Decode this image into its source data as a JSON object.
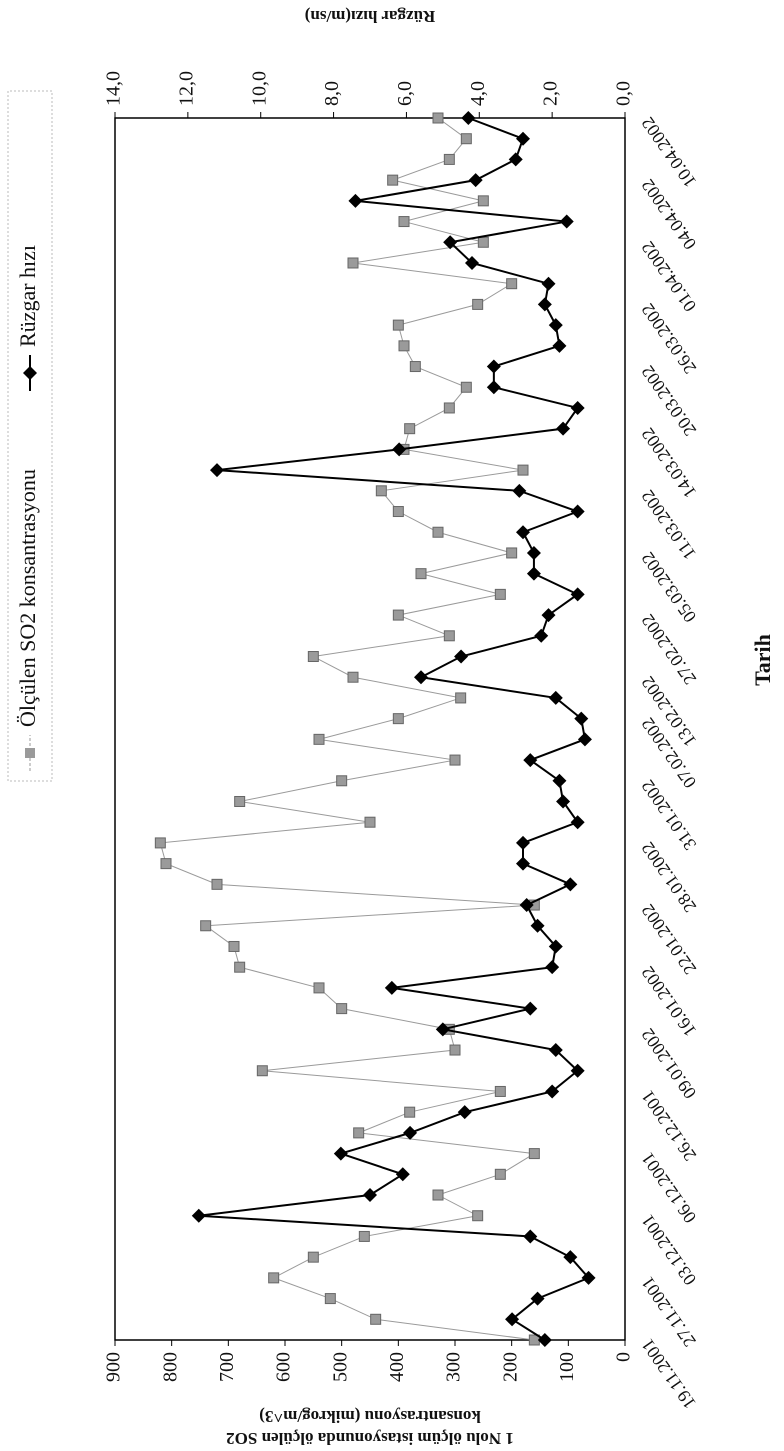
{
  "chart_data": {
    "type": "line",
    "xlabel": "Tarih",
    "ylabel_lines": [
      "1 Nolu ölçüm istasyonunda ölçülen SO2",
      "konsantrasyonu (mikrog/m^3)"
    ],
    "y2label": "Rüzgar hızı(m/sn)",
    "categories": [
      "19.11.2001",
      null,
      null,
      "27.11.2001",
      null,
      null,
      "03.12.2001",
      null,
      null,
      "06.12.2001",
      null,
      null,
      "26.12.2001",
      null,
      null,
      "09.01.2002",
      null,
      null,
      "16.01.2002",
      null,
      null,
      "22.01.2002",
      null,
      null,
      "28.01.2002",
      null,
      null,
      "31.01.2002",
      null,
      null,
      "07.02.2002",
      null,
      "13.02.2002",
      null,
      null,
      "27.02.2002",
      null,
      null,
      "05.03.2002",
      null,
      null,
      "11.03.2002",
      null,
      null,
      "14.03.2002",
      null,
      null,
      "20.03.2002",
      null,
      null,
      "26.03.2002",
      null,
      null,
      "01.04.2002",
      null,
      null,
      "04.04.2002",
      null,
      null,
      "10.04.2002"
    ],
    "series": [
      {
        "name": "Ölçülen SO2 konsantrasyonu",
        "color": "#9a9a9a",
        "axis": "y",
        "values": [
          160,
          440,
          520,
          620,
          550,
          460,
          260,
          330,
          220,
          160,
          470,
          380,
          220,
          640,
          300,
          310,
          500,
          540,
          680,
          690,
          740,
          160,
          720,
          810,
          820,
          450,
          680,
          500,
          300,
          540,
          400,
          290,
          480,
          550,
          310,
          400,
          220,
          360,
          200,
          330,
          400,
          430,
          180,
          390,
          380,
          310,
          280,
          370,
          390,
          400,
          260,
          200,
          480,
          250,
          390,
          250,
          410,
          310,
          280,
          330
        ]
      },
      {
        "name": "Rüzgar hızı",
        "color": "#000000",
        "axis": "y2",
        "values": [
          2.2,
          3.1,
          2.4,
          1.0,
          1.5,
          2.6,
          11.7,
          7.0,
          6.1,
          7.8,
          5.9,
          4.4,
          2.0,
          1.3,
          1.9,
          5.0,
          2.6,
          6.4,
          2.0,
          1.9,
          2.4,
          2.7,
          1.5,
          2.8,
          2.8,
          1.3,
          1.7,
          1.8,
          2.6,
          1.1,
          1.2,
          1.9,
          5.6,
          4.5,
          2.3,
          2.1,
          1.3,
          2.5,
          2.5,
          2.8,
          1.3,
          2.9,
          11.2,
          6.2,
          1.7,
          1.3,
          3.6,
          3.6,
          1.8,
          1.9,
          2.2,
          2.1,
          4.2,
          4.8,
          1.6,
          7.4,
          4.1,
          3.0,
          2.8,
          4.3
        ]
      }
    ],
    "ylim": [
      0,
      900
    ],
    "yticks": [
      0,
      100,
      200,
      300,
      400,
      500,
      600,
      700,
      800,
      900
    ],
    "y2lim": [
      0,
      14
    ],
    "y2ticks": [
      {
        "value": 0,
        "label": "0,0"
      },
      {
        "value": 2,
        "label": "2,0"
      },
      {
        "value": 4,
        "label": "4,0"
      },
      {
        "value": 6,
        "label": "6,0"
      },
      {
        "value": 8,
        "label": "8,0"
      },
      {
        "value": 10,
        "label": "10,0"
      },
      {
        "value": 12,
        "label": "12,0"
      },
      {
        "value": 14,
        "label": "14,0"
      }
    ],
    "grid": false
  }
}
